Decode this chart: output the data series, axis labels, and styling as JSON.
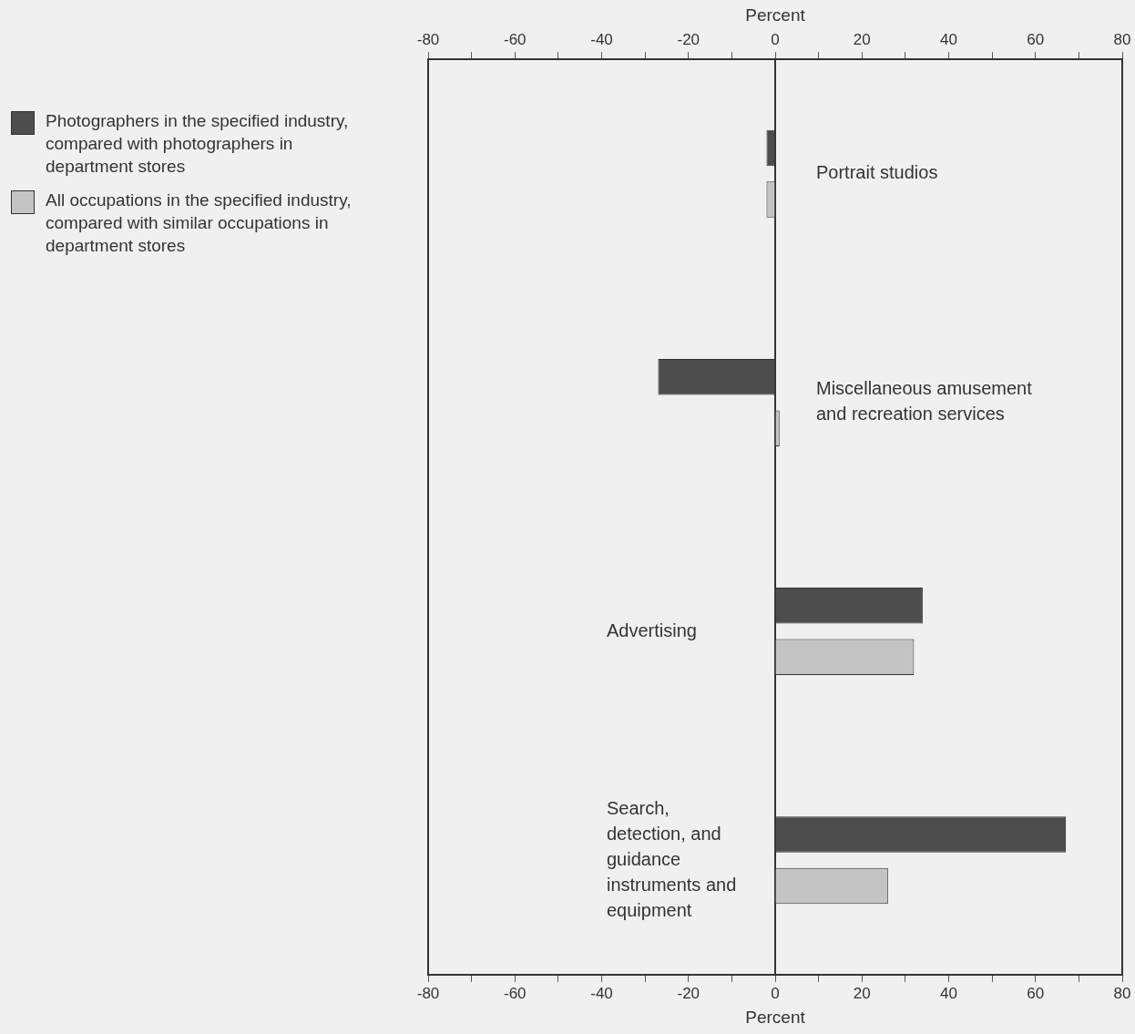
{
  "chart_data": {
    "type": "bar",
    "orientation": "horizontal",
    "categories": [
      "Portrait studios",
      "Miscellaneous amusement and recreation services",
      "Advertising",
      "Search, detection, and guidance instruments and equipment"
    ],
    "series": [
      {
        "name": "Photographers in the specified industry, compared with photographers in department stores",
        "color": "#4d4d4d",
        "values": [
          -2,
          -27,
          34,
          67
        ]
      },
      {
        "name": "All occupations in the specified industry, compared with similar occupations in department stores",
        "color": "#c4c4c4",
        "values": [
          -2,
          1,
          32,
          26
        ]
      }
    ],
    "xlabel": "Percent",
    "x2label": "Percent",
    "xlim": [
      -80,
      80
    ],
    "xticks": [
      -80,
      {
        "value": -70,
        "label": null
      },
      -60,
      {
        "value": -50,
        "label": null
      },
      -40,
      {
        "value": -30,
        "label": null
      },
      -20,
      {
        "value": -10,
        "label": null
      },
      0,
      {
        "value": 10,
        "label": null
      },
      20,
      {
        "value": 30,
        "label": null
      },
      40,
      {
        "value": 50,
        "label": null
      },
      60,
      {
        "value": 70,
        "label": null
      },
      80
    ],
    "x2lim": [
      -80,
      80
    ],
    "x2ticks": [
      -80,
      {
        "value": -70,
        "label": null
      },
      -60,
      {
        "value": -50,
        "label": null
      },
      -40,
      {
        "value": -30,
        "label": null
      },
      -20,
      {
        "value": -10,
        "label": null
      },
      0,
      {
        "value": 10,
        "label": null
      },
      20,
      {
        "value": 30,
        "label": null
      },
      40,
      {
        "value": 50,
        "label": null
      },
      60,
      {
        "value": 70,
        "label": null
      },
      80
    ],
    "grid": false,
    "legend": "top left"
  }
}
